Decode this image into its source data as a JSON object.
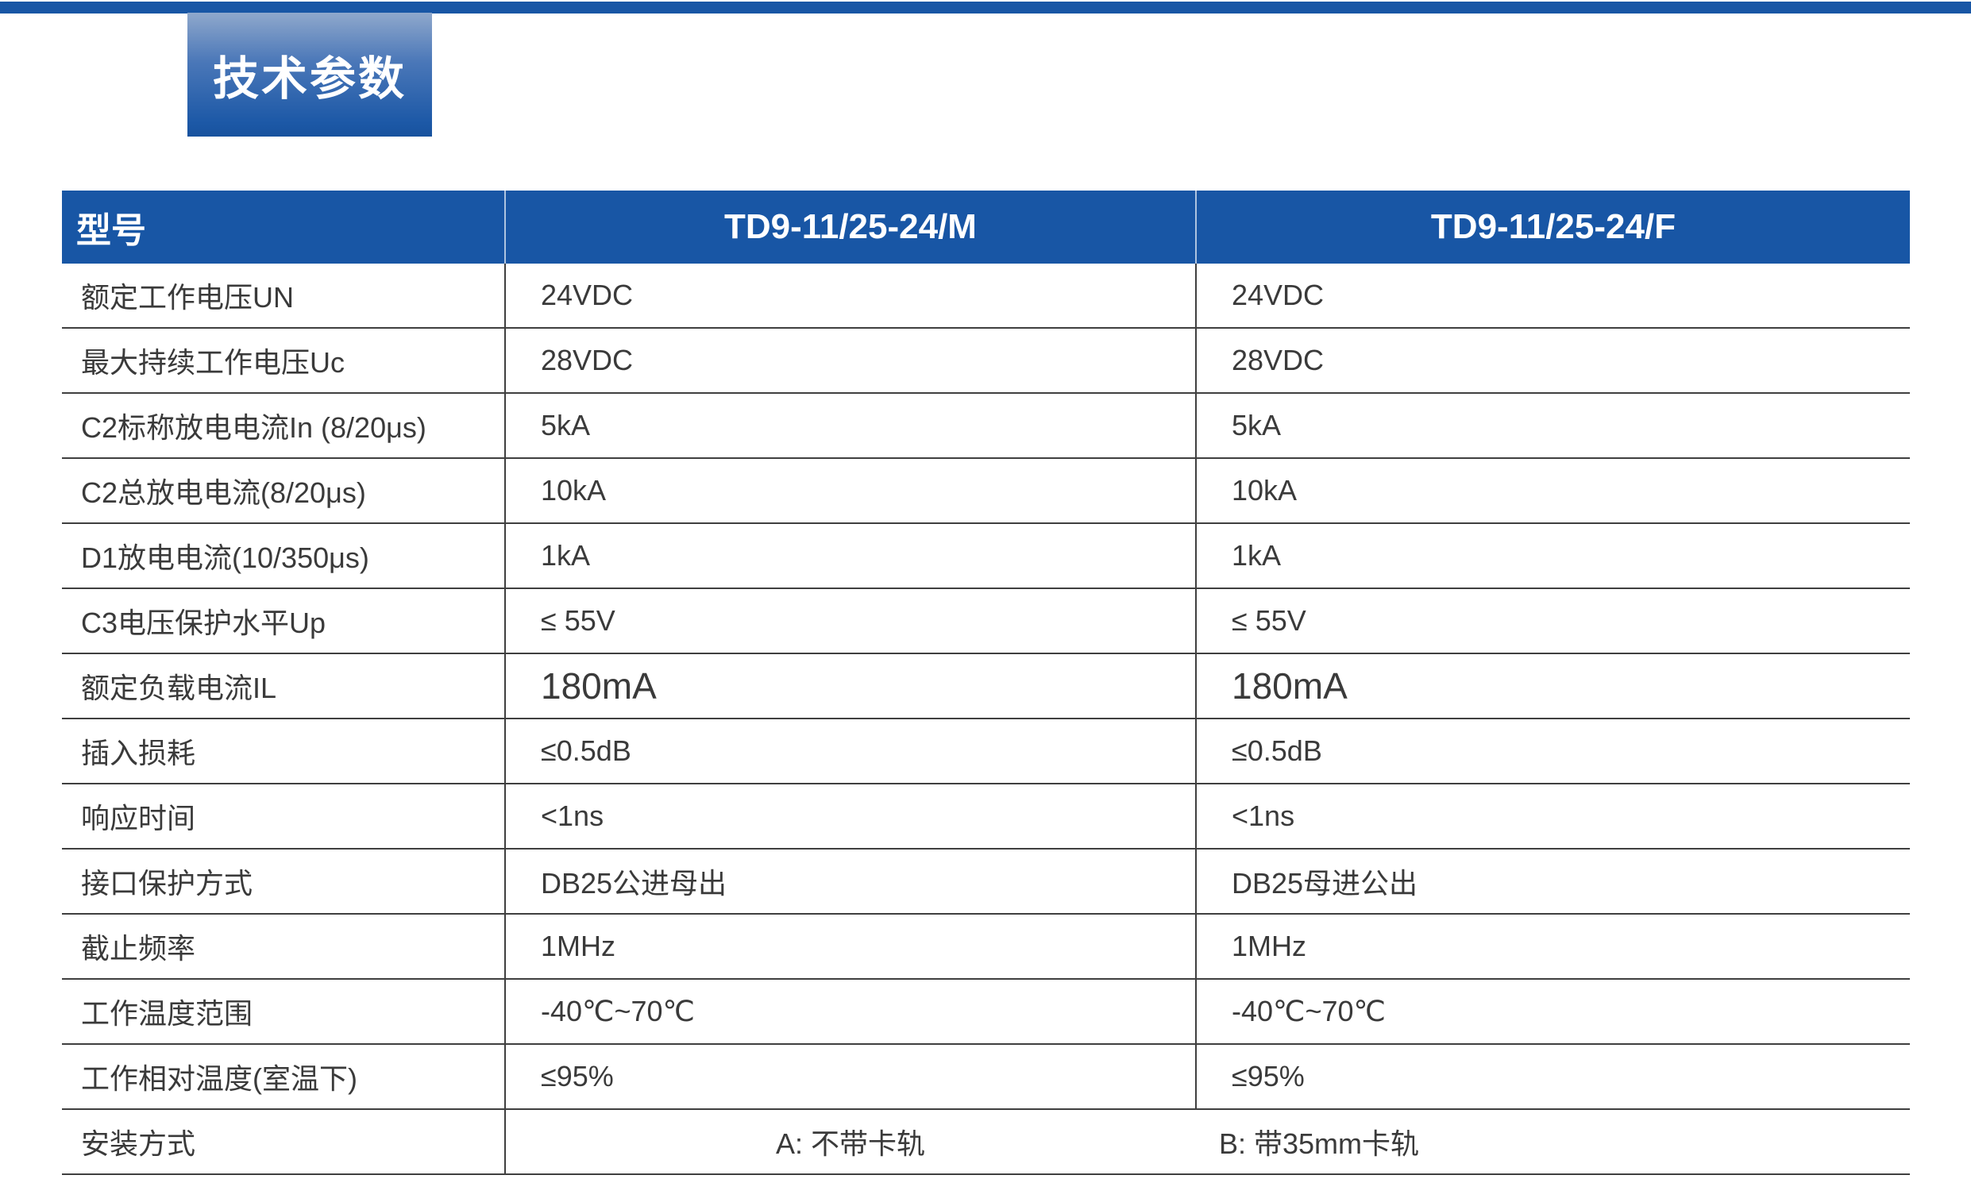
{
  "section": {
    "title": "技术参数"
  },
  "colors": {
    "accent_blue": "#1856a5",
    "badge_gradient_top": "#8fa8cc",
    "badge_gradient_bottom": "#17529e",
    "divider_line": "#3f3f3f",
    "body_text": "#3a3a3a",
    "header_text": "#ffffff"
  },
  "table": {
    "columns": [
      {
        "label": "型号"
      },
      {
        "label": "TD9-11/25-24/M"
      },
      {
        "label": "TD9-11/25-24/F"
      }
    ],
    "rows": [
      {
        "label": "额定工作电压UN",
        "m": "24VDC",
        "f": "24VDC"
      },
      {
        "label": "最大持续工作电压Uc",
        "m": "28VDC",
        "f": "28VDC"
      },
      {
        "label": "C2标称放电电流In (8/20μs)",
        "m": "5kA",
        "f": "5kA"
      },
      {
        "label": "C2总放电电流(8/20μs)",
        "m": "10kA",
        "f": "10kA"
      },
      {
        "label": "D1放电电流(10/350μs)",
        "m": "1kA",
        "f": "1kA"
      },
      {
        "label": "C3电压保护水平Up",
        "m": "≤ 55V",
        "f": "≤ 55V"
      },
      {
        "label": "额定负载电流IL",
        "m": "180mA",
        "f": "180mA",
        "size": "large"
      },
      {
        "label": "插入损耗",
        "m": "≤0.5dB",
        "f": "≤0.5dB"
      },
      {
        "label": "响应时间",
        "m": "<1ns",
        "f": "<1ns"
      },
      {
        "label": "接口保护方式",
        "m": "DB25公进母出",
        "f": "DB25母进公出"
      },
      {
        "label": "截止频率",
        "m": "1MHz",
        "f": "1MHz"
      },
      {
        "label": "工作温度范围",
        "m": "-40℃~70℃",
        "f": "-40℃~70℃"
      },
      {
        "label": "工作相对温度(室温下)",
        "m": "≤95%",
        "f": "≤95%"
      },
      {
        "label": "安装方式",
        "merged": true,
        "option_a": "A: 不带卡轨",
        "option_b": "B: 带35mm卡轨"
      }
    ]
  }
}
